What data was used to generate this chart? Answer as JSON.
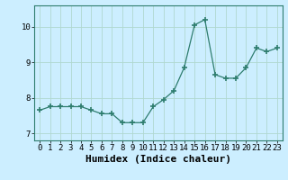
{
  "x": [
    0,
    1,
    2,
    3,
    4,
    5,
    6,
    7,
    8,
    9,
    10,
    11,
    12,
    13,
    14,
    15,
    16,
    17,
    18,
    19,
    20,
    21,
    22,
    23
  ],
  "y": [
    7.65,
    7.75,
    7.75,
    7.75,
    7.75,
    7.65,
    7.55,
    7.55,
    7.3,
    7.3,
    7.3,
    7.75,
    7.95,
    8.2,
    8.85,
    10.05,
    10.2,
    8.65,
    8.55,
    8.55,
    8.85,
    9.4,
    9.3,
    9.4
  ],
  "line_color": "#2e7d6e",
  "marker": "+",
  "marker_size": 4,
  "bg_color": "#cceeff",
  "grid_color": "#b0d8d0",
  "xlabel": "Humidex (Indice chaleur)",
  "ylim": [
    6.8,
    10.6
  ],
  "xlim": [
    -0.5,
    23.5
  ],
  "yticks": [
    7,
    8,
    9,
    10
  ],
  "xticks": [
    0,
    1,
    2,
    3,
    4,
    5,
    6,
    7,
    8,
    9,
    10,
    11,
    12,
    13,
    14,
    15,
    16,
    17,
    18,
    19,
    20,
    21,
    22,
    23
  ],
  "tick_fontsize": 6.5,
  "label_fontsize": 8
}
